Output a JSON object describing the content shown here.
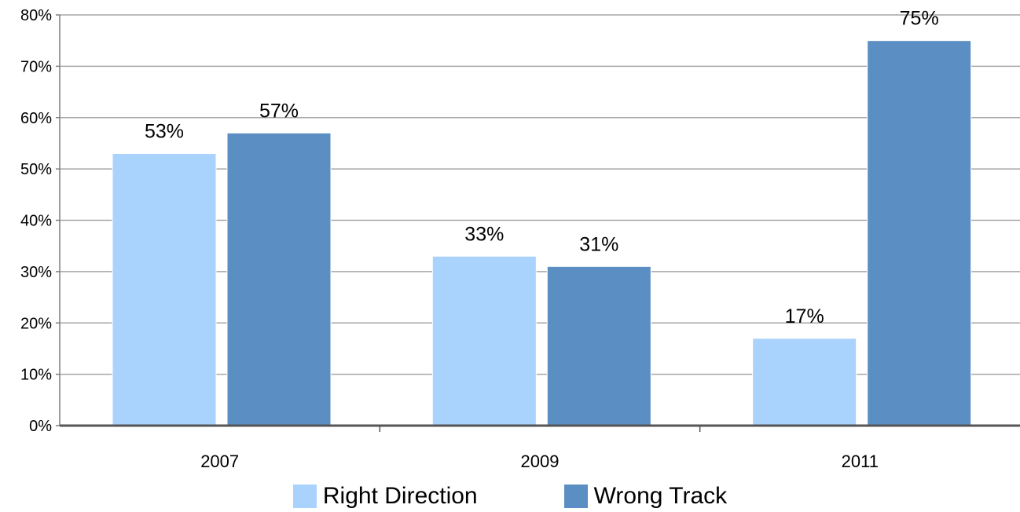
{
  "chart_data": {
    "type": "bar",
    "categories": [
      "2007",
      "2009",
      "2011"
    ],
    "series": [
      {
        "name": "Right Direction",
        "values": [
          53,
          33,
          17
        ],
        "labels": [
          "53%",
          "33%",
          "17%"
        ],
        "color": "#a9d3fd"
      },
      {
        "name": "Wrong Track",
        "values": [
          57,
          31,
          75
        ],
        "labels": [
          "57%",
          "31%",
          "75%"
        ],
        "color": "#5b8fc3"
      }
    ],
    "ylim": [
      0,
      80
    ],
    "yticks": [
      "0%",
      "10%",
      "20%",
      "30%",
      "40%",
      "50%",
      "60%",
      "70%",
      "80%"
    ],
    "grid": true,
    "legend_position": "bottom",
    "grid_color": "#a6a6a6",
    "axis_color": "#7f7f7f"
  }
}
